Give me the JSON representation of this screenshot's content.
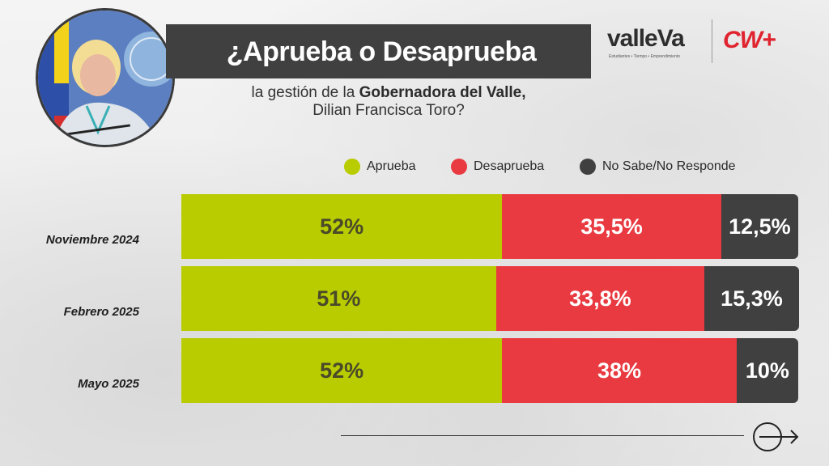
{
  "header": {
    "title": "¿Aprueba o Desaprueba",
    "subtitle_pre": "la gestión de la ",
    "subtitle_bold": "Gobernadora del Valle,",
    "subtitle_line2": "Dilian Francisca Toro?"
  },
  "logos": {
    "valle_word": "valleVa",
    "valle_tagline": "Estudiantes • Tiempo • Emprendimiento",
    "cw_word": "CW+"
  },
  "colors": {
    "aprueba": "#b8cc00",
    "desaprueba": "#e83a40",
    "ns_nr": "#404040",
    "aprueba_text": "#4a4a2a",
    "other_text": "#ffffff"
  },
  "icons": {
    "next": "arrow-right-circle-icon",
    "portrait": "portrait-photo"
  },
  "chart_data": {
    "type": "bar",
    "orientation": "horizontal",
    "stacked": true,
    "legend_position": "top",
    "categories": [
      "Noviembre 2024",
      "Febrero 2025",
      "Mayo 2025"
    ],
    "series": [
      {
        "name": "Aprueba",
        "values": [
          52,
          51,
          52
        ],
        "labels": [
          "52%",
          "51%",
          "52%"
        ]
      },
      {
        "name": "Desaprueba",
        "values": [
          35.5,
          33.8,
          38
        ],
        "labels": [
          "35,5%",
          "33,8%",
          "38%"
        ]
      },
      {
        "name": "No Sabe/No Responde",
        "values": [
          12.5,
          15.3,
          10
        ],
        "labels": [
          "12,5%",
          "15,3%",
          "10%"
        ]
      }
    ],
    "xlim": [
      0,
      100
    ],
    "grid": false
  }
}
